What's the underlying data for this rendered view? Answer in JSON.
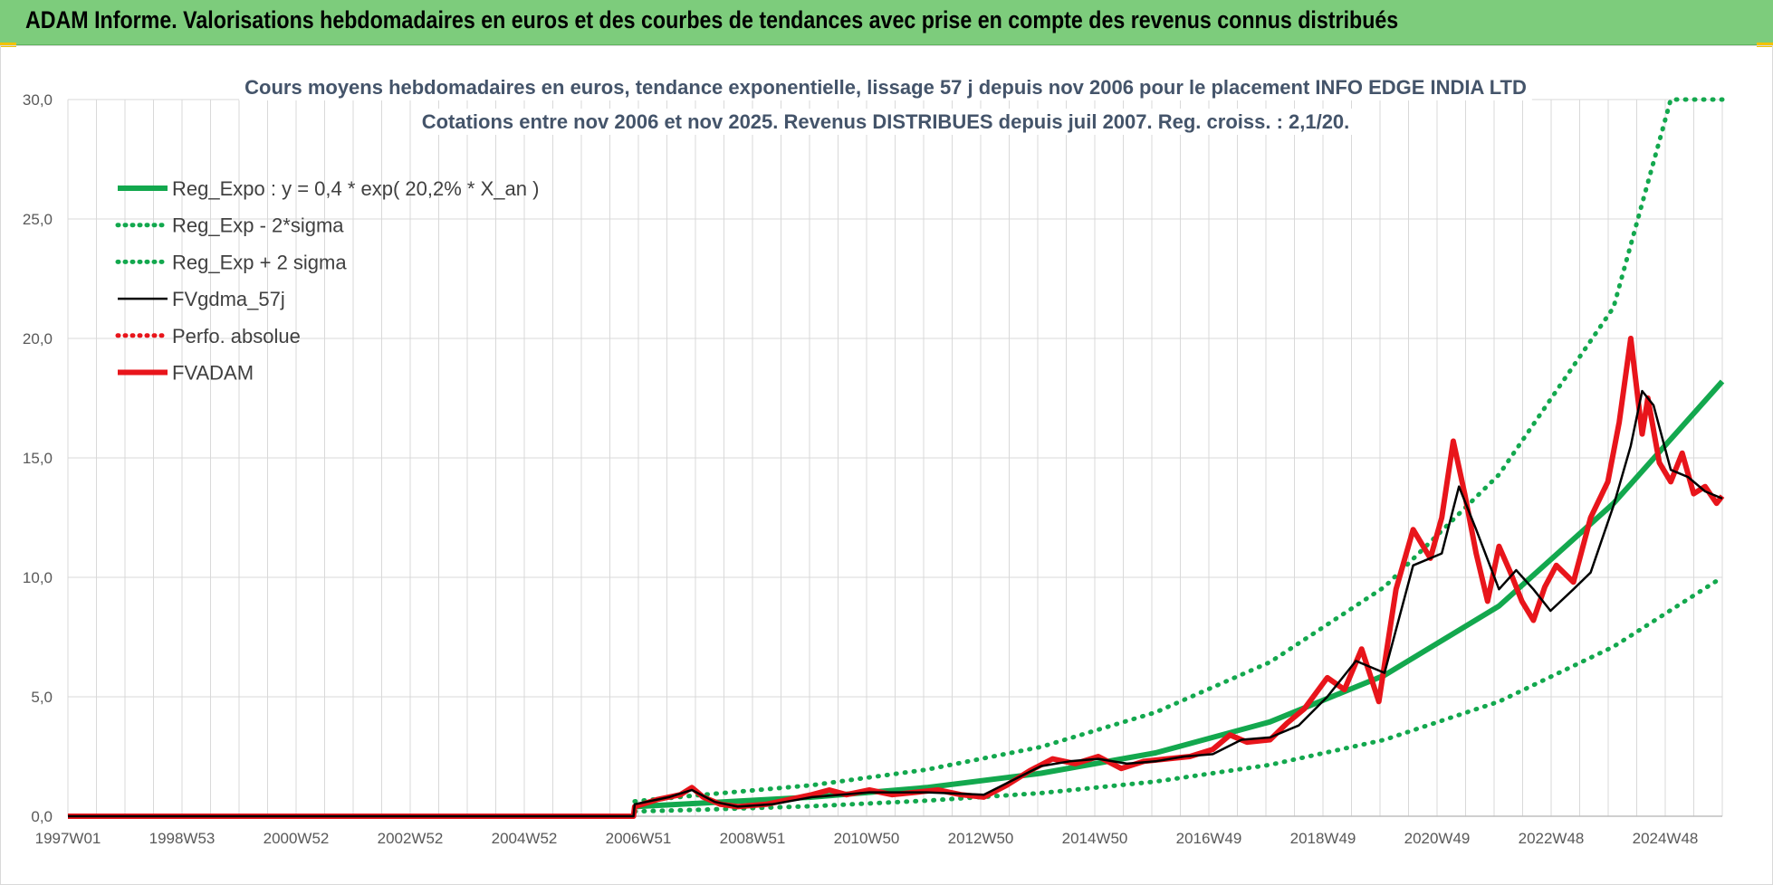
{
  "header": {
    "title": "ADAM Informe. Valorisations hebdomadaires en euros et des courbes de tendances avec prise en compte des revenus connus distribués"
  },
  "colors": {
    "header_bg": "#7dcc7c",
    "reg_green": "#13a84e",
    "fvadam_red": "#e8151b",
    "gdma_black": "#000000",
    "grid": "#d9d9d9"
  },
  "chart_data": {
    "type": "line",
    "title_lines": [
      "Cours moyens hebdomadaires en euros, tendance exponentielle, lissage 57 j depuis nov 2006 pour le placement INFO EDGE INDIA LTD",
      "Cotations entre nov 2006 et nov 2025. Revenus DISTRIBUES depuis juil 2007. Reg. croiss. : 2,1/20."
    ],
    "x_tick_labels": [
      "1997W01",
      "1998W53",
      "2000W52",
      "2002W52",
      "2004W52",
      "2006W51",
      "2008W51",
      "2010W50",
      "2012W50",
      "2014W50",
      "2016W49",
      "2018W49",
      "2020W49",
      "2022W48",
      "2024W48"
    ],
    "x_range_years": [
      1997.0,
      2025.9
    ],
    "y_tick_labels": [
      "0,0",
      "5,0",
      "10,0",
      "15,0",
      "20,0",
      "25,0",
      "30,0"
    ],
    "ylim": [
      0,
      30
    ],
    "grid": true,
    "legend_position": "top-left",
    "series": [
      {
        "name": "Reg_Expo : y = 0,4 * exp( 20,2% *  X_an )",
        "style": "solid-thick",
        "color": "#13a84e",
        "x": [
          2006.9,
          2008,
          2010,
          2012,
          2014,
          2016,
          2018,
          2020,
          2022,
          2024,
          2025.9
        ],
        "y": [
          0.4,
          0.54,
          0.8,
          1.2,
          1.8,
          2.65,
          3.95,
          5.9,
          8.8,
          13.1,
          18.2
        ]
      },
      {
        "name": "Reg_Exp - 2*sigma",
        "style": "dotted",
        "color": "#13a84e",
        "x": [
          2006.9,
          2008,
          2010,
          2012,
          2014,
          2016,
          2018,
          2020,
          2022,
          2024,
          2025.9
        ],
        "y": [
          0.2,
          0.27,
          0.42,
          0.65,
          0.97,
          1.45,
          2.15,
          3.2,
          4.8,
          7.1,
          10.0
        ]
      },
      {
        "name": "Reg_Exp + 2 sigma",
        "style": "dotted",
        "color": "#13a84e",
        "x": [
          2006.9,
          2008,
          2010,
          2012,
          2014,
          2016,
          2018,
          2020,
          2022,
          2024,
          2025.0,
          2025.9
        ],
        "y": [
          0.62,
          0.88,
          1.3,
          1.95,
          2.9,
          4.35,
          6.45,
          9.6,
          14.3,
          21.3,
          30.0,
          30.0
        ]
      },
      {
        "name": "FVgdma_57j",
        "style": "solid-thin",
        "color": "#000000",
        "x": [
          1997.0,
          2006.88,
          2006.9,
          2007.5,
          2007.9,
          2008.3,
          2008.7,
          2009.3,
          2010,
          2010.5,
          2011,
          2011.5,
          2012,
          2012.5,
          2013,
          2013.5,
          2014,
          2014.5,
          2015,
          2015.5,
          2016,
          2016.5,
          2017,
          2017.5,
          2018,
          2018.5,
          2019,
          2019.5,
          2020,
          2020.5,
          2021,
          2021.3,
          2021.6,
          2022,
          2022.3,
          2022.6,
          2022.9,
          2023.3,
          2023.6,
          2024,
          2024.3,
          2024.5,
          2024.7,
          2025,
          2025.3,
          2025.6,
          2025.9
        ],
        "y": [
          0,
          0,
          0.5,
          0.8,
          1.1,
          0.6,
          0.4,
          0.5,
          0.8,
          0.9,
          1.0,
          1.0,
          1.0,
          0.95,
          0.9,
          1.5,
          2.1,
          2.3,
          2.4,
          2.2,
          2.3,
          2.5,
          2.6,
          3.2,
          3.3,
          3.8,
          5.0,
          6.5,
          6.0,
          10.5,
          11.0,
          13.8,
          12.0,
          9.5,
          10.3,
          9.5,
          8.6,
          9.5,
          10.2,
          13.0,
          15.5,
          17.8,
          17.2,
          14.5,
          14.2,
          13.6,
          13.3
        ]
      },
      {
        "name": "Perfo. absolue",
        "style": "dotted",
        "color": "#e8151b",
        "x": [],
        "y": []
      },
      {
        "name": "FVADAM",
        "style": "solid-thick",
        "color": "#e8151b",
        "x": [
          1997.0,
          2006.88,
          2006.9,
          2007.3,
          2007.7,
          2007.9,
          2008.1,
          2008.4,
          2008.7,
          2009.2,
          2009.6,
          2010,
          2010.3,
          2010.6,
          2011,
          2011.4,
          2011.8,
          2012.2,
          2012.6,
          2013,
          2013.4,
          2013.8,
          2014.2,
          2014.6,
          2015,
          2015.4,
          2015.8,
          2016.2,
          2016.6,
          2017,
          2017.3,
          2017.6,
          2018,
          2018.3,
          2018.6,
          2019,
          2019.3,
          2019.6,
          2019.9,
          2020.2,
          2020.5,
          2020.8,
          2021,
          2021.2,
          2021.4,
          2021.6,
          2021.8,
          2022,
          2022.2,
          2022.4,
          2022.6,
          2022.8,
          2023,
          2023.3,
          2023.6,
          2023.9,
          2024.1,
          2024.3,
          2024.5,
          2024.6,
          2024.8,
          2025,
          2025.2,
          2025.4,
          2025.6,
          2025.8,
          2025.9
        ],
        "y": [
          0,
          0,
          0.4,
          0.7,
          0.9,
          1.2,
          0.8,
          0.5,
          0.4,
          0.5,
          0.7,
          0.9,
          1.1,
          0.9,
          1.1,
          0.9,
          1.0,
          1.1,
          0.9,
          0.8,
          1.3,
          1.9,
          2.4,
          2.2,
          2.5,
          2.0,
          2.3,
          2.4,
          2.5,
          2.8,
          3.4,
          3.1,
          3.2,
          3.9,
          4.5,
          5.8,
          5.3,
          7.0,
          4.8,
          9.5,
          12.0,
          10.8,
          12.5,
          15.7,
          13.5,
          11.0,
          9.0,
          11.3,
          10.2,
          9.0,
          8.2,
          9.6,
          10.5,
          9.8,
          12.5,
          14.0,
          16.5,
          20.0,
          16.0,
          17.5,
          14.8,
          14.0,
          15.2,
          13.5,
          13.8,
          13.1,
          13.4
        ]
      }
    ]
  }
}
